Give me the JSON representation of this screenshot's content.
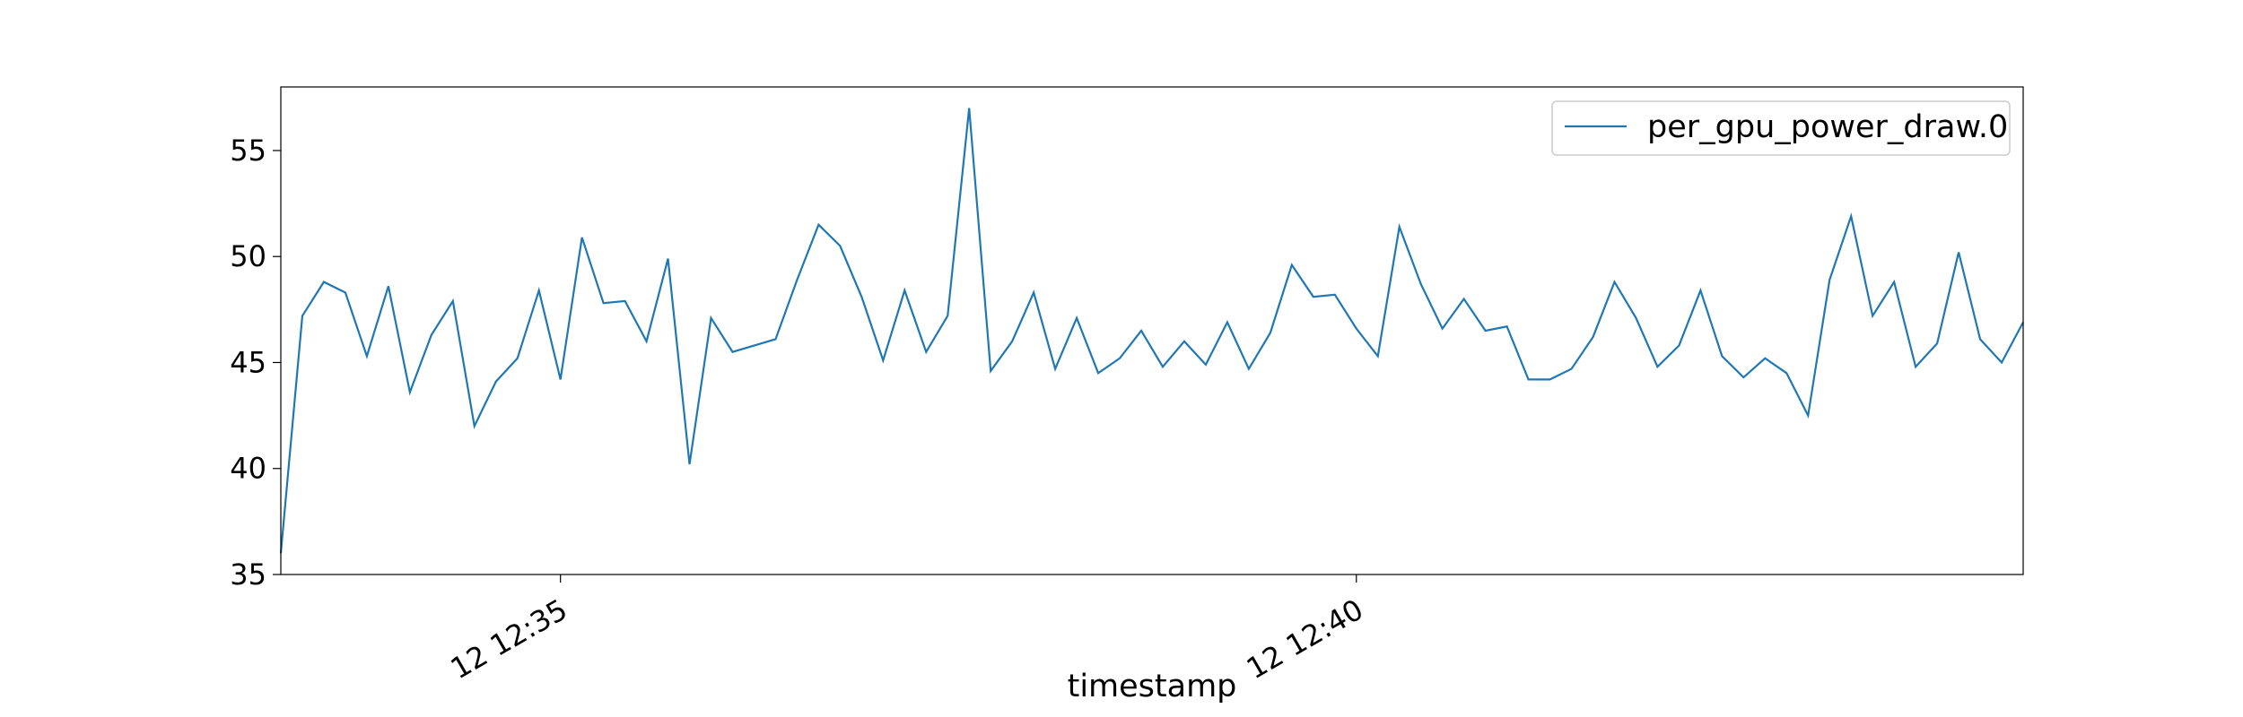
{
  "chart_data": {
    "type": "line",
    "title": "",
    "xlabel": "timestamp",
    "ylabel": "",
    "ylim": [
      35,
      58
    ],
    "yticks": [
      35,
      40,
      45,
      50,
      55
    ],
    "xticks": [
      {
        "label": "12 12:35",
        "index": 13
      },
      {
        "label": "12 12:40",
        "index": 50
      }
    ],
    "grid": false,
    "legend_position": "top-right",
    "series": [
      {
        "name": "per_gpu_power_draw.0",
        "color": "#1f77b4",
        "values": [
          36.0,
          47.2,
          48.8,
          48.3,
          45.3,
          48.6,
          43.6,
          46.3,
          47.9,
          42.0,
          44.1,
          45.2,
          48.4,
          44.2,
          50.9,
          47.8,
          47.9,
          46.0,
          49.9,
          40.2,
          47.1,
          45.5,
          45.8,
          46.1,
          48.9,
          51.5,
          50.5,
          48.1,
          45.1,
          48.4,
          45.5,
          47.2,
          57.0,
          44.6,
          46.0,
          48.3,
          44.7,
          47.1,
          44.5,
          45.2,
          46.5,
          44.8,
          46.0,
          44.9,
          46.9,
          44.7,
          46.4,
          49.6,
          48.1,
          48.2,
          46.6,
          45.3,
          51.4,
          48.7,
          46.6,
          48.0,
          46.5,
          46.7,
          44.2,
          44.2,
          44.7,
          46.2,
          48.8,
          47.1,
          44.8,
          45.8,
          48.4,
          45.3,
          44.3,
          45.2,
          44.5,
          42.5,
          48.9,
          51.9,
          47.2,
          48.8,
          44.8,
          45.9,
          50.2,
          46.1,
          45.0,
          46.9
        ]
      }
    ]
  }
}
